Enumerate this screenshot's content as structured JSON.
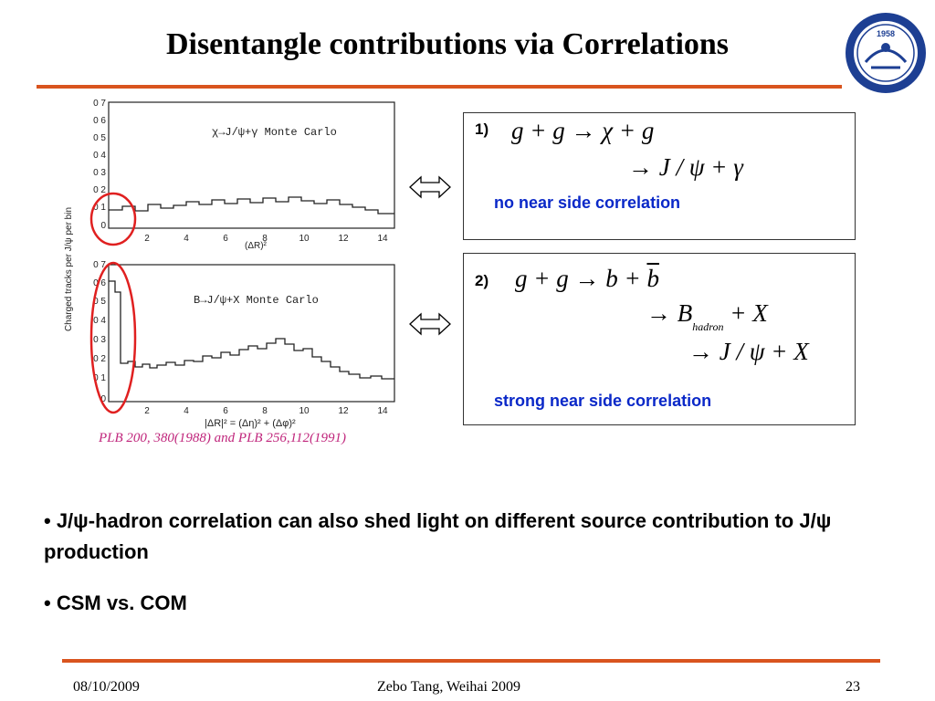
{
  "title": "Disentangle contributions via Correlations",
  "figure": {
    "top_panel": {
      "label": "χ→J/ψ+γ Monte Carlo",
      "y_ticks": [
        "0 7",
        "0 6",
        "0 5",
        "0 4",
        "0 3",
        "0 2",
        "0 1",
        "0"
      ],
      "x_ticks": [
        "2",
        "4",
        "6",
        "8",
        "10",
        "12",
        "14"
      ],
      "x_unit": "(ΔR)²"
    },
    "bottom_panel": {
      "label": "B→J/ψ+X Monte Carlo",
      "y_ticks": [
        "0 7",
        "0 6",
        "0 5",
        "0 4",
        "0 3",
        "0 2",
        "0 1",
        "0"
      ],
      "x_ticks": [
        "2",
        "4",
        "6",
        "8",
        "10",
        "12",
        "14"
      ],
      "x_label": "|ΔR|² = (Δη)² + (Δφ)²"
    },
    "y_axis_label": "Charged tracks per J/ψ per bin",
    "citation": "PLB 200, 380(1988) and PLB 256,112(1991)"
  },
  "box1": {
    "number": "1)",
    "eq_line1": "g + g → χ + g",
    "eq_line2": "→ J / ψ + γ",
    "note": "no near side correlation"
  },
  "box2": {
    "number": "2)",
    "eq_line1_pre": "g + g → b + ",
    "eq_line1_bar": "b",
    "eq_line2_pre": "→ B",
    "eq_line2_sub": "hadron",
    "eq_line2_post": " + X",
    "eq_line3": "→ J / ψ + X",
    "note": "strong near side correlation"
  },
  "bullets": {
    "b1": "• J/ψ-hadron correlation can also shed light on different source contribution to J/ψ production",
    "b2": "• CSM vs. COM"
  },
  "footer": {
    "date": "08/10/2009",
    "center": "Zebo Tang, Weihai 2009",
    "page": "23"
  },
  "logo": {
    "year": "1958"
  },
  "colors": {
    "rule": "#d9541e",
    "note": "#0a28c8",
    "citation": "#c0267c",
    "circle": "#e02020",
    "logo": "#1d3f93"
  }
}
